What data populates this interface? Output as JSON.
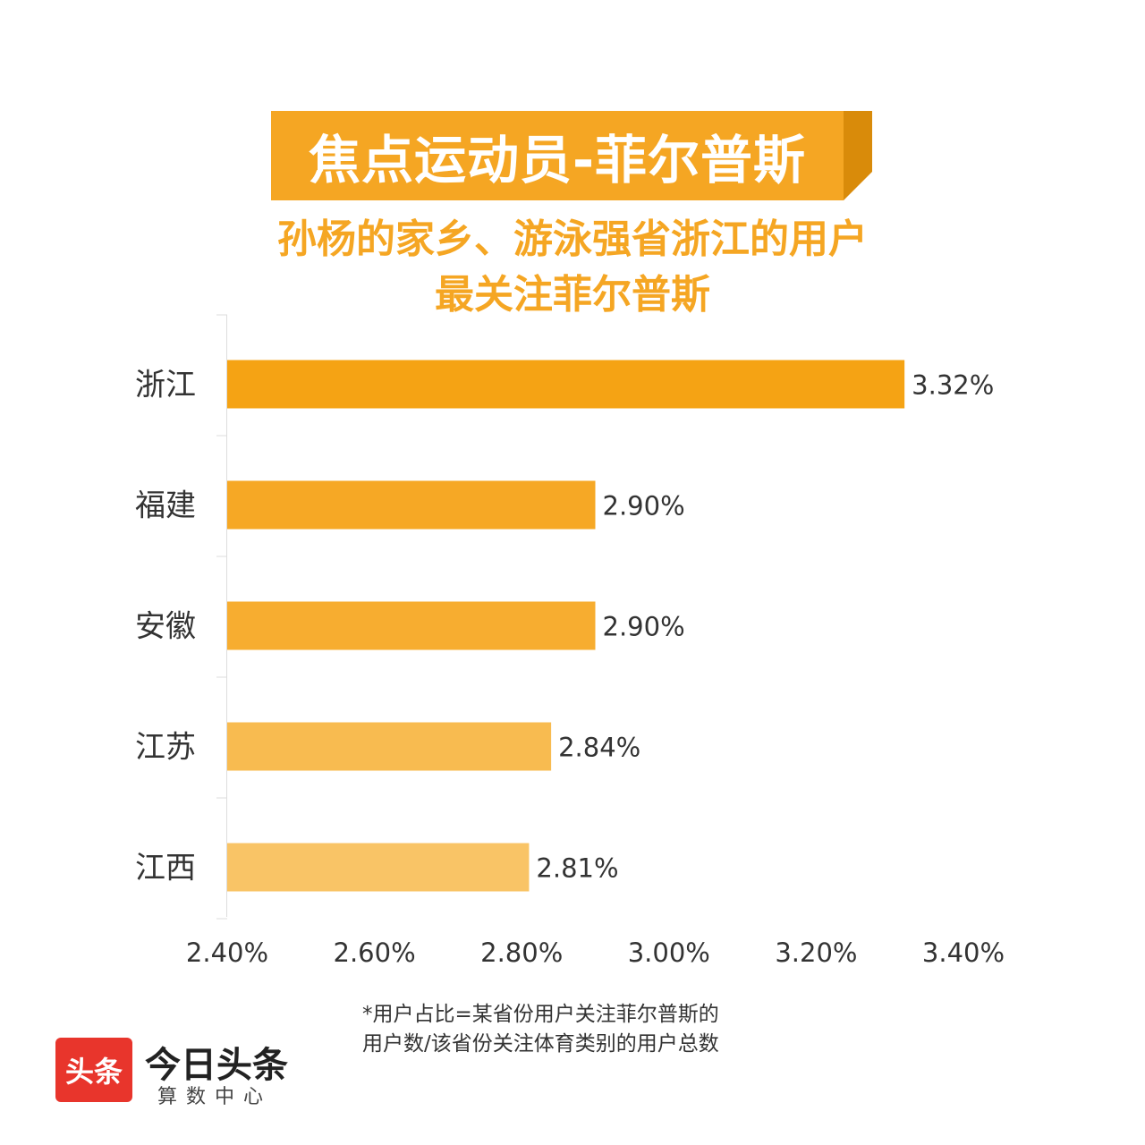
{
  "banner": {
    "title": "焦点运动员-菲尔普斯"
  },
  "subtitle": {
    "line1": "孙杨的家乡、游泳强省浙江的用户",
    "line2": "最关注菲尔普斯"
  },
  "colors": {
    "accent": "#f5a623",
    "banner_shadow": "#d98b0a"
  },
  "chart_data": {
    "type": "bar",
    "orientation": "horizontal",
    "categories": [
      "浙江",
      "福建",
      "安徽",
      "江苏",
      "江西"
    ],
    "values": [
      3.32,
      2.9,
      2.9,
      2.84,
      2.81
    ],
    "value_labels": [
      "3.32%",
      "2.90%",
      "2.90%",
      "2.84%",
      "2.81%"
    ],
    "bar_colors": [
      "#f5a314",
      "#f6a825",
      "#f7ad30",
      "#f8bb50",
      "#f9c466"
    ],
    "xlim": [
      2.4,
      3.4
    ],
    "x_ticks": [
      2.4,
      2.6,
      2.8,
      3.0,
      3.2,
      3.4
    ],
    "x_tick_labels": [
      "2.40%",
      "2.60%",
      "2.80%",
      "3.00%",
      "3.20%",
      "3.40%"
    ],
    "grid": false,
    "legend": "none"
  },
  "footnote": {
    "line1": "*用户占比=某省份用户关注菲尔普斯的",
    "line2": "用户数/该省份关注体育类别的用户总数"
  },
  "logo": {
    "badge": "头条",
    "name": "今日头条",
    "sub": "算数中心"
  }
}
